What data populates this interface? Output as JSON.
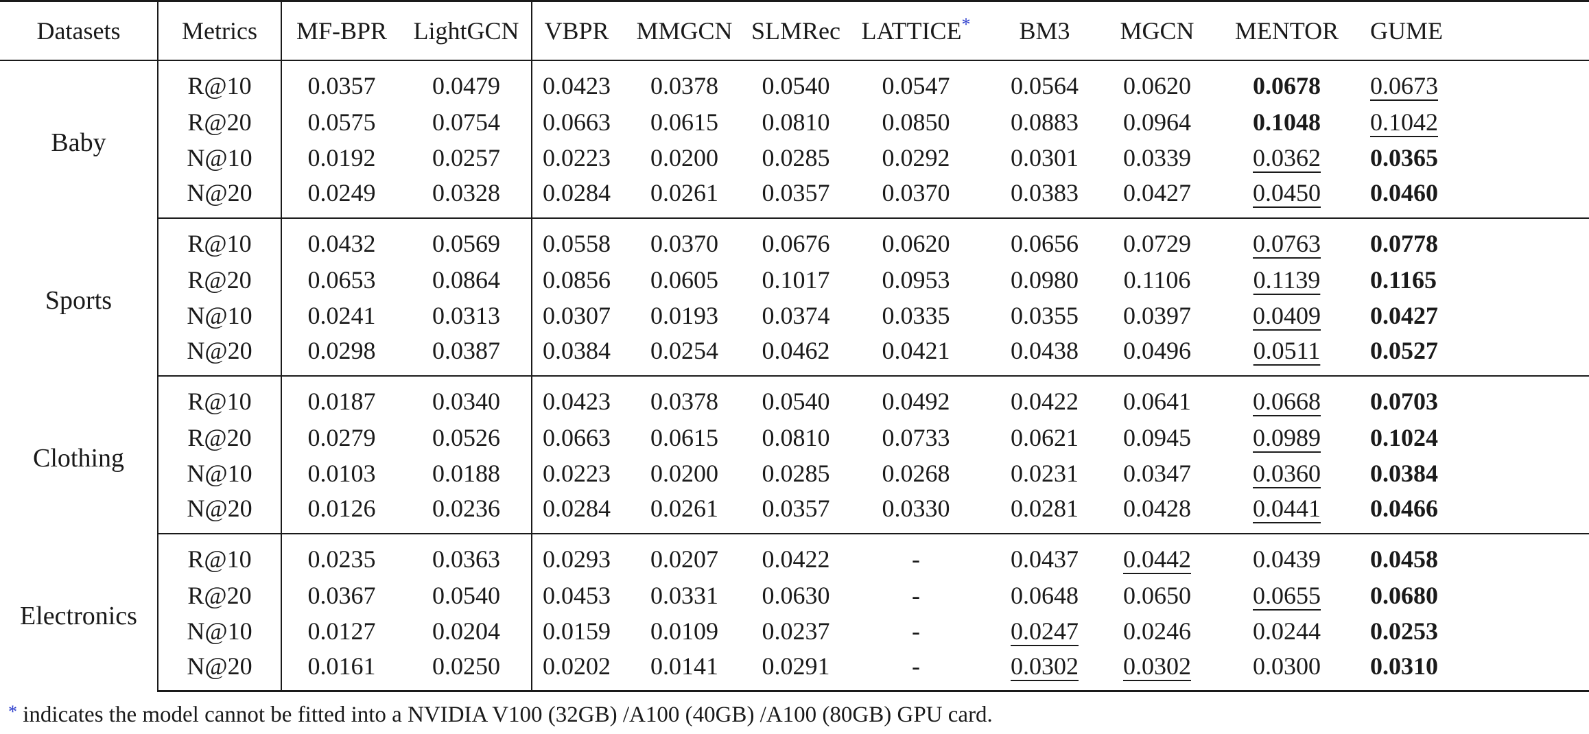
{
  "columns": [
    "Datasets",
    "Metrics",
    "MF-BPR",
    "LightGCN",
    "VBPR",
    "MMGCN",
    "SLMRec",
    "LATTICE",
    "BM3",
    "MGCN",
    "MENTOR",
    "GUME"
  ],
  "lattice_marker": "*",
  "groups": [
    {
      "name": "Baby",
      "rows": [
        {
          "metric": "R@10",
          "values": [
            "0.0357",
            "0.0479",
            "0.0423",
            "0.0378",
            "0.0540",
            "0.0547",
            "0.0564",
            "0.0620",
            "0.0678",
            "0.0673"
          ],
          "best": 8,
          "second": 9
        },
        {
          "metric": "R@20",
          "values": [
            "0.0575",
            "0.0754",
            "0.0663",
            "0.0615",
            "0.0810",
            "0.0850",
            "0.0883",
            "0.0964",
            "0.1048",
            "0.1042"
          ],
          "best": 8,
          "second": 9
        },
        {
          "metric": "N@10",
          "values": [
            "0.0192",
            "0.0257",
            "0.0223",
            "0.0200",
            "0.0285",
            "0.0292",
            "0.0301",
            "0.0339",
            "0.0362",
            "0.0365"
          ],
          "best": 9,
          "second": 8
        },
        {
          "metric": "N@20",
          "values": [
            "0.0249",
            "0.0328",
            "0.0284",
            "0.0261",
            "0.0357",
            "0.0370",
            "0.0383",
            "0.0427",
            "0.0450",
            "0.0460"
          ],
          "best": 9,
          "second": 8
        }
      ]
    },
    {
      "name": "Sports",
      "rows": [
        {
          "metric": "R@10",
          "values": [
            "0.0432",
            "0.0569",
            "0.0558",
            "0.0370",
            "0.0676",
            "0.0620",
            "0.0656",
            "0.0729",
            "0.0763",
            "0.0778"
          ],
          "best": 9,
          "second": 8
        },
        {
          "metric": "R@20",
          "values": [
            "0.0653",
            "0.0864",
            "0.0856",
            "0.0605",
            "0.1017",
            "0.0953",
            "0.0980",
            "0.1106",
            "0.1139",
            "0.1165"
          ],
          "best": 9,
          "second": 8
        },
        {
          "metric": "N@10",
          "values": [
            "0.0241",
            "0.0313",
            "0.0307",
            "0.0193",
            "0.0374",
            "0.0335",
            "0.0355",
            "0.0397",
            "0.0409",
            "0.0427"
          ],
          "best": 9,
          "second": 8
        },
        {
          "metric": "N@20",
          "values": [
            "0.0298",
            "0.0387",
            "0.0384",
            "0.0254",
            "0.0462",
            "0.0421",
            "0.0438",
            "0.0496",
            "0.0511",
            "0.0527"
          ],
          "best": 9,
          "second": 8
        }
      ]
    },
    {
      "name": "Clothing",
      "rows": [
        {
          "metric": "R@10",
          "values": [
            "0.0187",
            "0.0340",
            "0.0423",
            "0.0378",
            "0.0540",
            "0.0492",
            "0.0422",
            "0.0641",
            "0.0668",
            "0.0703"
          ],
          "best": 9,
          "second": 8
        },
        {
          "metric": "R@20",
          "values": [
            "0.0279",
            "0.0526",
            "0.0663",
            "0.0615",
            "0.0810",
            "0.0733",
            "0.0621",
            "0.0945",
            "0.0989",
            "0.1024"
          ],
          "best": 9,
          "second": 8
        },
        {
          "metric": "N@10",
          "values": [
            "0.0103",
            "0.0188",
            "0.0223",
            "0.0200",
            "0.0285",
            "0.0268",
            "0.0231",
            "0.0347",
            "0.0360",
            "0.0384"
          ],
          "best": 9,
          "second": 8
        },
        {
          "metric": "N@20",
          "values": [
            "0.0126",
            "0.0236",
            "0.0284",
            "0.0261",
            "0.0357",
            "0.0330",
            "0.0281",
            "0.0428",
            "0.0441",
            "0.0466"
          ],
          "best": 9,
          "second": 8
        }
      ]
    },
    {
      "name": "Electronics",
      "rows": [
        {
          "metric": "R@10",
          "values": [
            "0.0235",
            "0.0363",
            "0.0293",
            "0.0207",
            "0.0422",
            "-",
            "0.0437",
            "0.0442",
            "0.0439",
            "0.0458"
          ],
          "best": 9,
          "second": [
            7
          ]
        },
        {
          "metric": "R@20",
          "values": [
            "0.0367",
            "0.0540",
            "0.0453",
            "0.0331",
            "0.0630",
            "-",
            "0.0648",
            "0.0650",
            "0.0655",
            "0.0680"
          ],
          "best": 9,
          "second": [
            8
          ]
        },
        {
          "metric": "N@10",
          "values": [
            "0.0127",
            "0.0204",
            "0.0159",
            "0.0109",
            "0.0237",
            "-",
            "0.0247",
            "0.0246",
            "0.0244",
            "0.0253"
          ],
          "best": 9,
          "second": [
            6
          ]
        },
        {
          "metric": "N@20",
          "values": [
            "0.0161",
            "0.0250",
            "0.0202",
            "0.0141",
            "0.0291",
            "-",
            "0.0302",
            "0.0302",
            "0.0300",
            "0.0310"
          ],
          "best": 9,
          "second": [
            6,
            7
          ]
        }
      ]
    }
  ],
  "footnote": {
    "marker": "*",
    "text": " indicates the model cannot be fitted into a NVIDIA V100 (32GB) /A100 (40GB) /A100 (80GB) GPU card."
  }
}
